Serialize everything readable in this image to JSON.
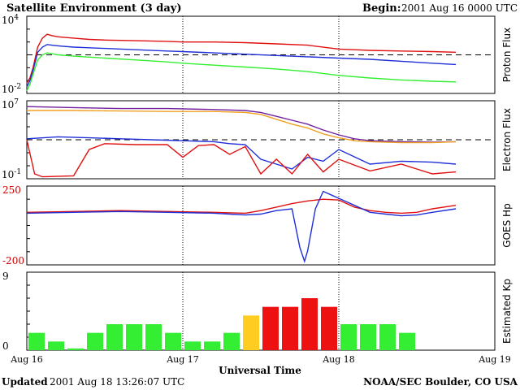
{
  "header": {
    "title": "Satellite Environment (3 day)",
    "begin_label": "Begin:",
    "begin_value": "2001 Aug 16 0000 UTC"
  },
  "footer": {
    "updated_label": "Updated",
    "updated_value": "2001 Aug 18 13:26:07 UTC",
    "credit": "NOAA/SEC Boulder, CO USA"
  },
  "x_axis": {
    "label": "Universal Time",
    "ticks": [
      "Aug 16",
      "Aug 17",
      "Aug 18",
      "Aug 19"
    ],
    "range_days": [
      0,
      3
    ]
  },
  "colors": {
    "red": "#e01010",
    "blue": "#1f2fd8",
    "green": "#33ee33",
    "orange": "#f0a020",
    "purple": "#7020a0",
    "kp_green": "#33ee33",
    "kp_yellow": "#ffcc22",
    "kp_red": "#ee1111",
    "axis_red": "#cc0000"
  },
  "chart_data": [
    {
      "type": "line",
      "panel": "proton",
      "ylabel": "Proton Flux",
      "yscale": "log",
      "ytick_labels": [
        {
          "mantissa": "10",
          "exponent": "4"
        },
        {
          "mantissa": "10",
          "exponent": "-2"
        }
      ],
      "ylim": [
        -2,
        4
      ],
      "threshold_log": 1,
      "series": [
        {
          "color": "red",
          "x": [
            0,
            0.02,
            0.04,
            0.07,
            0.1,
            0.13,
            0.16,
            0.2,
            0.3,
            0.4,
            0.5,
            0.7,
            0.9,
            1.0,
            1.2,
            1.4,
            1.6,
            1.8,
            2.0,
            2.1,
            2.2,
            2.4,
            2.6,
            2.75
          ],
          "y": [
            -1.2,
            -0.8,
            0,
            1.6,
            2.3,
            2.6,
            2.5,
            2.4,
            2.3,
            2.2,
            2.15,
            2.1,
            2.05,
            2.0,
            2.0,
            1.95,
            1.85,
            1.75,
            1.45,
            1.4,
            1.35,
            1.3,
            1.25,
            1.2
          ]
        },
        {
          "color": "blue",
          "x": [
            0,
            0.02,
            0.04,
            0.07,
            0.1,
            0.13,
            0.16,
            0.2,
            0.3,
            0.4,
            0.5,
            0.7,
            0.9,
            1.0,
            1.2,
            1.4,
            1.6,
            1.8,
            2.0,
            2.2,
            2.4,
            2.6,
            2.75
          ],
          "y": [
            -1.5,
            -1.0,
            -0.2,
            1.2,
            1.6,
            1.8,
            1.75,
            1.7,
            1.6,
            1.55,
            1.5,
            1.4,
            1.3,
            1.25,
            1.15,
            1.05,
            0.95,
            0.85,
            0.75,
            0.65,
            0.5,
            0.35,
            0.25
          ]
        },
        {
          "color": "green",
          "x": [
            0,
            0.02,
            0.04,
            0.07,
            0.1,
            0.13,
            0.16,
            0.2,
            0.3,
            0.5,
            0.7,
            0.9,
            1.0,
            1.2,
            1.4,
            1.6,
            1.8,
            2.0,
            2.2,
            2.4,
            2.6,
            2.75
          ],
          "y": [
            -1.8,
            -1.3,
            -0.5,
            0.6,
            1.0,
            1.15,
            1.1,
            1.0,
            0.9,
            0.75,
            0.6,
            0.45,
            0.35,
            0.2,
            0.05,
            -0.1,
            -0.3,
            -0.6,
            -0.8,
            -0.95,
            -1.05,
            -1.1
          ]
        }
      ]
    },
    {
      "type": "line",
      "panel": "electron",
      "ylabel": "Electron Flux",
      "yscale": "log",
      "ytick_labels": [
        {
          "mantissa": "10",
          "exponent": "7"
        },
        {
          "mantissa": "10",
          "exponent": "-1"
        }
      ],
      "ylim": [
        -1,
        7
      ],
      "threshold_log": 3,
      "series": [
        {
          "color": "purple",
          "x": [
            0,
            0.3,
            0.6,
            0.9,
            1.2,
            1.4,
            1.5,
            1.6,
            1.7,
            1.8,
            1.9,
            2.0,
            2.1,
            2.2,
            2.4,
            2.6,
            2.75
          ],
          "y": [
            6.4,
            6.3,
            6.2,
            6.2,
            6.1,
            6.0,
            5.8,
            5.4,
            5.0,
            4.6,
            4.0,
            3.5,
            3.1,
            2.9,
            2.8,
            2.75,
            2.8
          ]
        },
        {
          "color": "orange",
          "x": [
            0,
            0.3,
            0.6,
            0.9,
            1.2,
            1.4,
            1.5,
            1.6,
            1.7,
            1.8,
            1.9,
            2.0,
            2.1,
            2.2,
            2.4,
            2.6,
            2.75
          ],
          "y": [
            6.0,
            6.0,
            5.95,
            5.9,
            5.9,
            5.8,
            5.6,
            5.1,
            4.6,
            4.2,
            3.6,
            3.2,
            2.9,
            2.8,
            2.7,
            2.7,
            2.8
          ]
        },
        {
          "color": "blue",
          "x": [
            0,
            0.2,
            0.4,
            0.6,
            0.8,
            1.0,
            1.2,
            1.3,
            1.4,
            1.5,
            1.6,
            1.7,
            1.8,
            1.9,
            2.0,
            2.2,
            2.4,
            2.6,
            2.75
          ],
          "y": [
            3.1,
            3.3,
            3.2,
            3.1,
            3.0,
            2.9,
            2.8,
            2.6,
            2.5,
            1.0,
            0.5,
            0.0,
            1.2,
            0.8,
            2.0,
            0.5,
            0.8,
            0.7,
            0.5
          ]
        },
        {
          "color": "red",
          "x": [
            0,
            0.05,
            0.1,
            0.3,
            0.4,
            0.5,
            0.7,
            0.9,
            1.0,
            1.1,
            1.2,
            1.3,
            1.4,
            1.5,
            1.6,
            1.7,
            1.8,
            1.9,
            2.0,
            2.2,
            2.4,
            2.6,
            2.75
          ],
          "y": [
            3.0,
            -0.5,
            -0.8,
            -0.7,
            2.0,
            2.6,
            2.5,
            2.5,
            1.2,
            2.4,
            2.5,
            1.5,
            2.3,
            -0.5,
            1.0,
            -0.5,
            1.5,
            -0.3,
            1.0,
            -0.2,
            0.5,
            -0.5,
            -0.3
          ]
        }
      ]
    },
    {
      "type": "line",
      "panel": "hp",
      "ylabel": "GOES Hp",
      "ytick_labels": [
        "250",
        "-200"
      ],
      "ylim": [
        -200,
        250
      ],
      "series": [
        {
          "color": "red",
          "x": [
            0,
            0.3,
            0.6,
            0.9,
            1.2,
            1.4,
            1.5,
            1.6,
            1.7,
            1.8,
            1.9,
            2.0,
            2.1,
            2.2,
            2.3,
            2.4,
            2.5,
            2.6,
            2.75
          ],
          "y": [
            100,
            105,
            110,
            105,
            100,
            95,
            110,
            130,
            150,
            165,
            175,
            170,
            130,
            110,
            100,
            95,
            100,
            120,
            140
          ]
        },
        {
          "color": "blue",
          "x": [
            0,
            0.3,
            0.6,
            0.9,
            1.2,
            1.3,
            1.4,
            1.5,
            1.6,
            1.7,
            1.75,
            1.78,
            1.8,
            1.85,
            1.9,
            1.95,
            2.0,
            2.1,
            2.2,
            2.3,
            2.4,
            2.5,
            2.6,
            2.75
          ],
          "y": [
            95,
            100,
            105,
            100,
            95,
            90,
            85,
            90,
            110,
            120,
            -100,
            -180,
            -120,
            120,
            220,
            200,
            180,
            140,
            100,
            90,
            80,
            85,
            100,
            120
          ]
        }
      ]
    },
    {
      "type": "bar",
      "panel": "kp",
      "ylabel": "Estimated Kp",
      "ytick_labels": [
        "9",
        "0"
      ],
      "ylim": [
        0,
        9
      ],
      "bin_hours": 3,
      "values": [
        2,
        1,
        0.2,
        2,
        3,
        3,
        3,
        2,
        1,
        1,
        2,
        4,
        5,
        5,
        6,
        5,
        3,
        3,
        3,
        2
      ],
      "colors": [
        "kp_green",
        "kp_green",
        "kp_green",
        "kp_green",
        "kp_green",
        "kp_green",
        "kp_green",
        "kp_green",
        "kp_green",
        "kp_green",
        "kp_green",
        "kp_yellow",
        "kp_red",
        "kp_red",
        "kp_red",
        "kp_red",
        "kp_green",
        "kp_green",
        "kp_green",
        "kp_green"
      ]
    }
  ]
}
